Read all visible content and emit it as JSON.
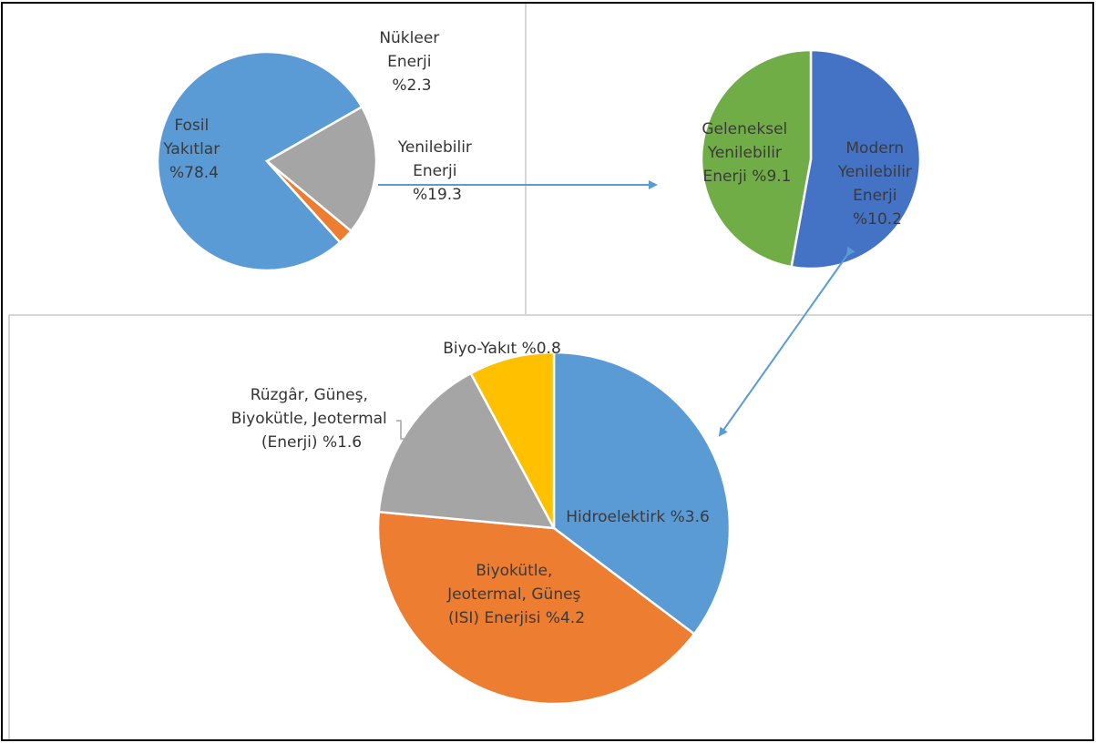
{
  "chart_data": [
    {
      "type": "pie",
      "title": "",
      "slices": [
        {
          "label": [
            "Fosil",
            "Yakıtlar",
            "%78.4"
          ],
          "value": 78.4,
          "color": "#5b9bd5"
        },
        {
          "label": [
            "Yenilebilir",
            "Enerji",
            "%19.3"
          ],
          "value": 19.3,
          "color": "#a5a5a5"
        },
        {
          "label": [
            "Nükleer",
            "Enerji",
            "%2.3"
          ],
          "value": 2.3,
          "color": "#ed7d31"
        }
      ]
    },
    {
      "type": "pie",
      "title": "",
      "slices": [
        {
          "label": [
            "Modern",
            "Yenilebilir",
            "Enerji",
            "%10.2"
          ],
          "value": 10.2,
          "color": "#4472c4"
        },
        {
          "label": [
            "Geleneksel",
            "Yenilebilir",
            "Enerji %9.1"
          ],
          "value": 9.1,
          "color": "#70ad47"
        }
      ]
    },
    {
      "type": "pie",
      "title": "",
      "slices": [
        {
          "label": [
            "Hidroelektirk %3.6"
          ],
          "value": 3.6,
          "color": "#5b9bd5"
        },
        {
          "label": [
            "Biyokütle,",
            "Jeotermal, Güneş",
            "(ISI) Enerjisi %4.2"
          ],
          "value": 4.2,
          "color": "#ed7d31"
        },
        {
          "label": [
            "Rüzgâr, Güneş,",
            "Biyokütle, Jeotermal",
            "(Enerji) %1.6"
          ],
          "value": 1.6,
          "color": "#a5a5a5"
        },
        {
          "label": [
            "Biyo-Yakıt %0.8"
          ],
          "value": 0.8,
          "color": "#ffc000"
        }
      ]
    }
  ]
}
